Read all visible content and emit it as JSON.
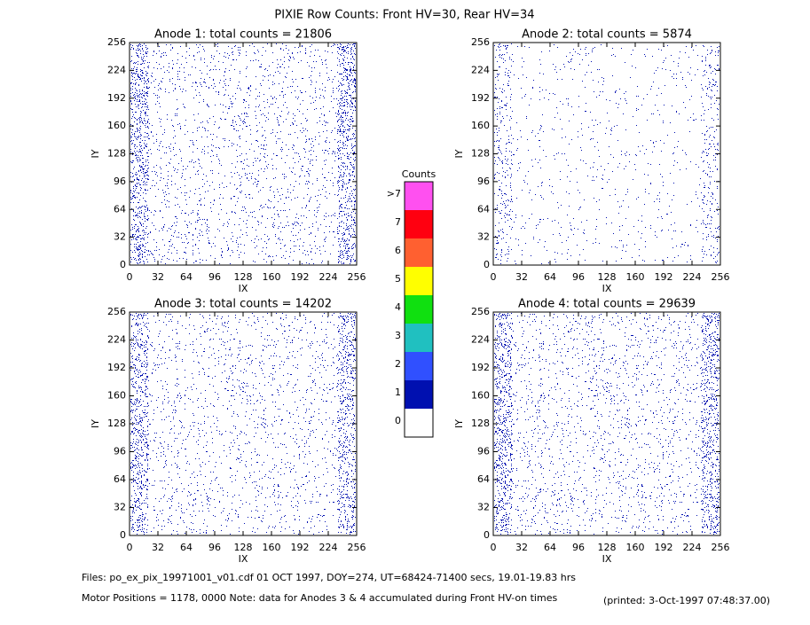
{
  "title": "PIXIE Row Counts:  Front HV=30, Rear HV=34",
  "chart_data": [
    {
      "type": "heatmap",
      "title": "Anode 1: total counts = 21806",
      "xlabel": "IX",
      "ylabel": "IY",
      "xlim": [
        0,
        256
      ],
      "ylim": [
        0,
        256
      ],
      "xticks": [
        0,
        32,
        64,
        96,
        128,
        160,
        192,
        224,
        256
      ],
      "yticks": [
        0,
        32,
        64,
        96,
        128,
        160,
        192,
        224,
        256
      ]
    },
    {
      "type": "heatmap",
      "title": "Anode 2: total counts = 5874",
      "xlabel": "IX",
      "ylabel": "IY",
      "xlim": [
        0,
        256
      ],
      "ylim": [
        0,
        256
      ],
      "xticks": [
        0,
        32,
        64,
        96,
        128,
        160,
        192,
        224,
        256
      ],
      "yticks": [
        0,
        32,
        64,
        96,
        128,
        160,
        192,
        224,
        256
      ]
    },
    {
      "type": "heatmap",
      "title": "Anode 3: total counts = 14202",
      "xlabel": "IX",
      "ylabel": "IY",
      "xlim": [
        0,
        256
      ],
      "ylim": [
        0,
        256
      ],
      "xticks": [
        0,
        32,
        64,
        96,
        128,
        160,
        192,
        224,
        256
      ],
      "yticks": [
        0,
        32,
        64,
        96,
        128,
        160,
        192,
        224,
        256
      ]
    },
    {
      "type": "heatmap",
      "title": "Anode 4: total counts = 29639",
      "xlabel": "IX",
      "ylabel": "IY",
      "xlim": [
        0,
        256
      ],
      "ylim": [
        0,
        256
      ],
      "xticks": [
        0,
        32,
        64,
        96,
        128,
        160,
        192,
        224,
        256
      ],
      "yticks": [
        0,
        32,
        64,
        96,
        128,
        160,
        192,
        224,
        256
      ]
    }
  ],
  "colorbar": {
    "title": "Counts",
    "levels": [
      {
        "label": "0",
        "color": "#ffffff"
      },
      {
        "label": "1",
        "color": "#0010b0"
      },
      {
        "label": "2",
        "color": "#3050ff"
      },
      {
        "label": "3",
        "color": "#20c0c0"
      },
      {
        "label": "4",
        "color": "#10e010"
      },
      {
        "label": "5",
        "color": "#ffff00"
      },
      {
        "label": "6",
        "color": "#ff6030"
      },
      {
        "label": "7",
        "color": "#ff0010"
      },
      {
        "label": ">7",
        "color": "#ff50f0"
      }
    ]
  },
  "footer": {
    "files": "Files: po_ex_pix_19971001_v01.cdf    01 OCT 1997, DOY=274, UT=68424-71400 secs, 19.01-19.83 hrs",
    "motor": "Motor Positions = 1178, 0000   Note: data for Anodes 3 & 4 accumulated during Front HV-on times",
    "printed": "(printed:  3-Oct-1997 07:48:37.00)"
  }
}
